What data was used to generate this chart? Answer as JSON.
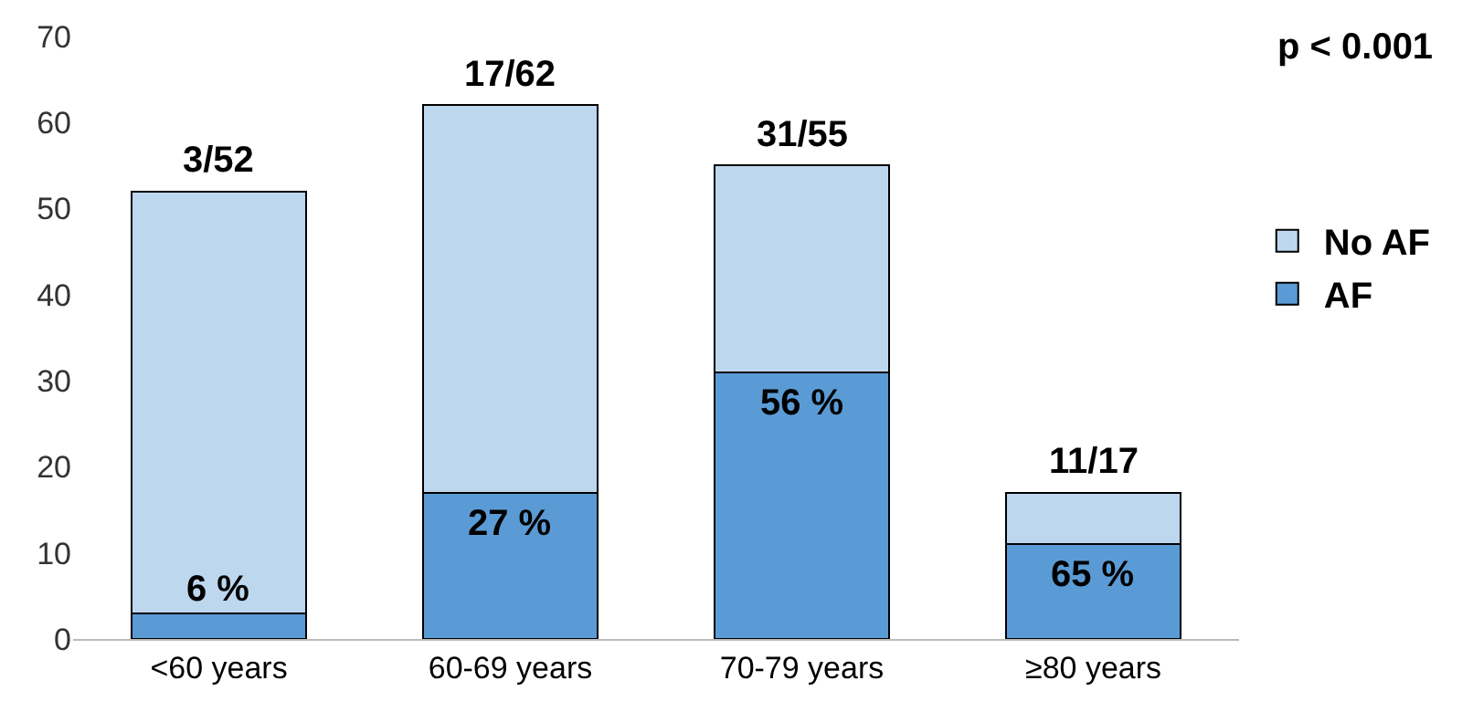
{
  "chart_data": {
    "type": "bar",
    "stacked": true,
    "categories": [
      "<60 years",
      "60-69 years",
      "70-79 years",
      "≥80 years"
    ],
    "series": [
      {
        "name": "AF",
        "color": "#5b9bd5",
        "values": [
          3,
          17,
          31,
          11
        ]
      },
      {
        "name": "No AF",
        "color": "#bdd7ee",
        "values": [
          49,
          45,
          24,
          6
        ]
      }
    ],
    "totals": [
      "3/52",
      "17/62",
      "31/55",
      "11/17"
    ],
    "ylim": [
      0,
      70
    ],
    "yticks": [
      0,
      10,
      20,
      30,
      40,
      50,
      60,
      70
    ],
    "grid": false,
    "legend": "right",
    "annotations": [
      "p < 0.001",
      {
        "text": "6 %",
        "x": "<60 years",
        "y": 3
      },
      {
        "text": "27 %",
        "x": "60-69 years",
        "y": 17
      },
      {
        "text": "56 %",
        "x": "70-79 years",
        "y": 31
      },
      {
        "text": "65 %",
        "x": "≥80 years",
        "y": 11
      }
    ]
  }
}
